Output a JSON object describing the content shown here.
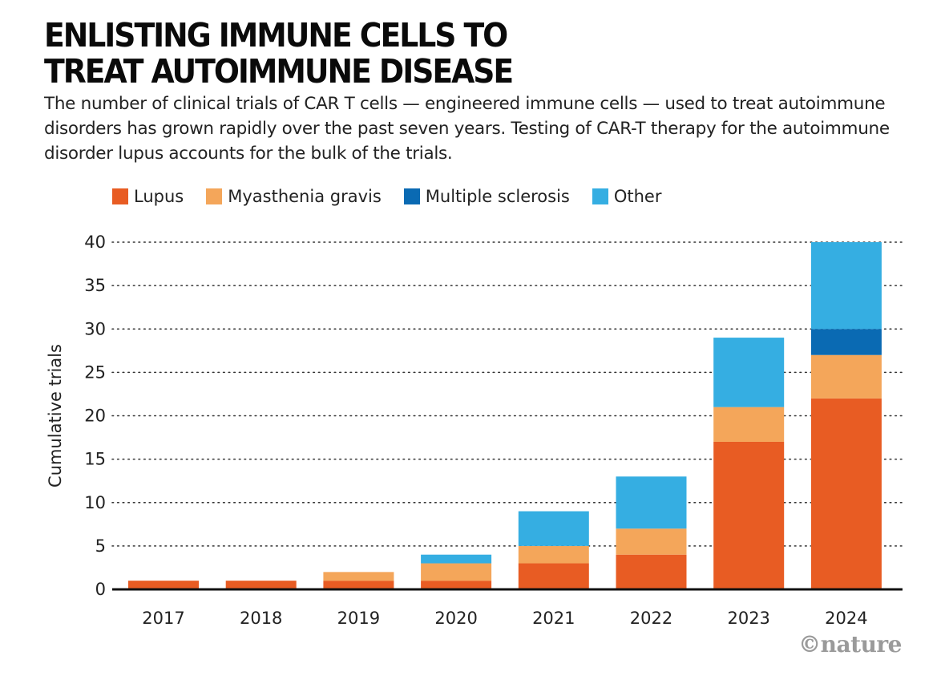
{
  "headline": {
    "line1": "ENLISTING IMMUNE CELLS TO",
    "line2": "TREAT AUTOIMMUNE DISEASE"
  },
  "subtitle": "The number of clinical trials of CAR T cells — engineered immune cells — used to treat autoimmune disorders has grown rapidly over the past seven years. Testing of CAR-T therapy for the autoimmune disorder lupus accounts for the bulk of the trials.",
  "credit": "©nature",
  "colors": {
    "lupus": "#e85c23",
    "myasthenia_gravis": "#f4a65a",
    "multiple_sclerosis": "#0a6ab3",
    "other": "#35aee2"
  },
  "chart_data": {
    "type": "bar",
    "stacked": true,
    "title": "ENLISTING IMMUNE CELLS TO TREAT AUTOIMMUNE DISEASE",
    "xlabel": "",
    "ylabel": "Cumulative trials",
    "ylim": [
      0,
      40
    ],
    "yticks": [
      0,
      5,
      10,
      15,
      20,
      25,
      30,
      35,
      40
    ],
    "grid": "horizontal dotted",
    "legend_position": "top-left",
    "categories": [
      "2017",
      "2018",
      "2019",
      "2020",
      "2021",
      "2022",
      "2023",
      "2024"
    ],
    "series": [
      {
        "name": "Lupus",
        "color": "#e85c23",
        "values": [
          1,
          1,
          1,
          1,
          3,
          4,
          17,
          22
        ]
      },
      {
        "name": "Myasthenia gravis",
        "color": "#f4a65a",
        "values": [
          0,
          0,
          1,
          2,
          2,
          3,
          4,
          5
        ]
      },
      {
        "name": "Multiple sclerosis",
        "color": "#0a6ab3",
        "values": [
          0,
          0,
          0,
          0,
          0,
          0,
          0,
          3
        ]
      },
      {
        "name": "Other",
        "color": "#35aee2",
        "values": [
          0,
          0,
          0,
          1,
          4,
          6,
          8,
          10
        ]
      }
    ]
  }
}
